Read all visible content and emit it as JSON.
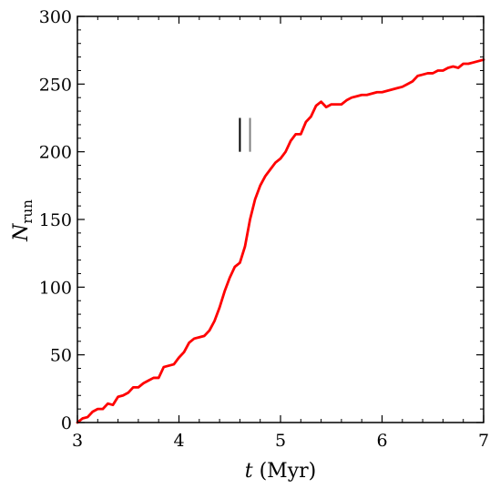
{
  "chart_data": {
    "type": "line",
    "xlabel_main": "t",
    "xlabel_unit": " (Myr)",
    "ylabel_main": "N",
    "ylabel_sub": "run",
    "xlim": [
      3,
      7
    ],
    "ylim": [
      0,
      300
    ],
    "xticks": [
      "3",
      "4",
      "5",
      "6",
      "7"
    ],
    "yticks": [
      "0",
      "50",
      "100",
      "150",
      "200",
      "250",
      "300"
    ],
    "grid": false,
    "line_color": "#ff0000",
    "marker_colors": [
      "#000000",
      "#808080"
    ],
    "markers": [
      {
        "x": 4.6,
        "y_range": [
          200,
          225
        ]
      },
      {
        "x": 4.7,
        "y_range": [
          200,
          225
        ]
      }
    ],
    "series": [
      {
        "x": [
          3.0,
          3.05,
          3.1,
          3.15,
          3.2,
          3.25,
          3.3,
          3.35,
          3.4,
          3.45,
          3.5,
          3.55,
          3.6,
          3.65,
          3.7,
          3.75,
          3.8,
          3.85,
          3.9,
          3.95,
          4.0,
          4.05,
          4.1,
          4.15,
          4.2,
          4.25,
          4.3,
          4.35,
          4.4,
          4.45,
          4.5,
          4.55,
          4.6,
          4.65,
          4.7,
          4.75,
          4.8,
          4.85,
          4.9,
          4.95,
          5.0,
          5.05,
          5.1,
          5.15,
          5.2,
          5.25,
          5.3,
          5.35,
          5.4,
          5.45,
          5.5,
          5.55,
          5.6,
          5.65,
          5.7,
          5.75,
          5.8,
          5.85,
          5.9,
          5.95,
          6.0,
          6.05,
          6.1,
          6.15,
          6.2,
          6.25,
          6.3,
          6.35,
          6.4,
          6.45,
          6.5,
          6.55,
          6.6,
          6.65,
          6.7,
          6.75,
          6.8,
          6.85,
          6.9,
          6.95,
          7.0
        ],
        "y": [
          0,
          3,
          4,
          8,
          10,
          10,
          14,
          13,
          19,
          20,
          22,
          26,
          26,
          29,
          31,
          33,
          33,
          41,
          42,
          43,
          48,
          52,
          59,
          62,
          63,
          64,
          68,
          75,
          85,
          97,
          107,
          115,
          118,
          130,
          150,
          165,
          175,
          182,
          187,
          192,
          195,
          200,
          208,
          213,
          213,
          222,
          226,
          234,
          237,
          233,
          235,
          235,
          235,
          238,
          240,
          241,
          242,
          242,
          243,
          244,
          244,
          245,
          246,
          247,
          248,
          250,
          252,
          256,
          257,
          258,
          258,
          260,
          260,
          262,
          263,
          262,
          265,
          265,
          266,
          267,
          268
        ]
      }
    ]
  }
}
